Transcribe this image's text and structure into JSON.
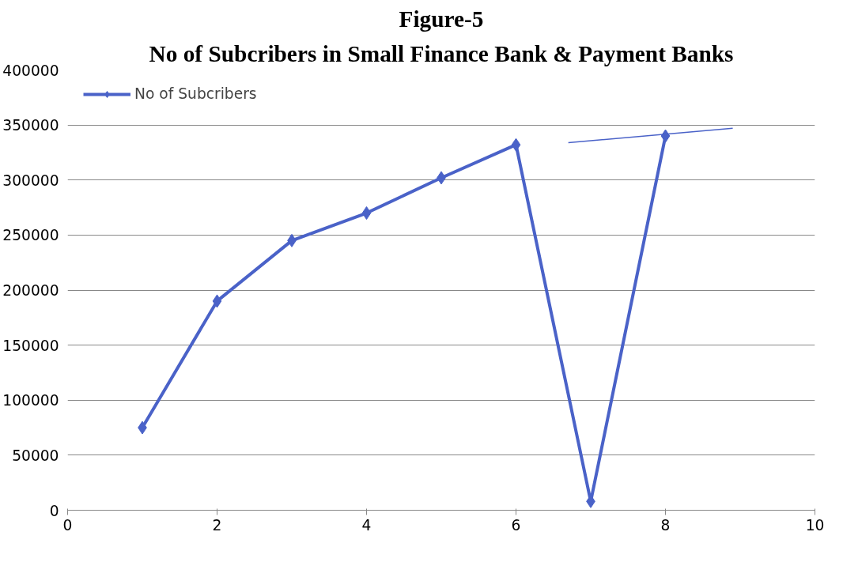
{
  "chart_data": {
    "type": "line",
    "title": "Figure-5",
    "subtitle": "No of Subcribers in Small Finance Bank & Payment Banks",
    "series": [
      {
        "name": "No of Subcribers",
        "color": "#4a62c8",
        "x": [
          1,
          2,
          3,
          4,
          5,
          6,
          7,
          8
        ],
        "values": [
          75000,
          190000,
          245000,
          270000,
          302000,
          332000,
          8000,
          340000
        ],
        "marker": "diamond"
      },
      {
        "color": "#4a62c8",
        "x": [
          6.7,
          8.9
        ],
        "values": [
          334000,
          347000
        ],
        "marker": "none"
      }
    ],
    "xlim": [
      0,
      10
    ],
    "xticks": [
      0,
      2,
      4,
      6,
      8,
      10
    ],
    "ylim": [
      0,
      400000
    ],
    "yticks": [
      0,
      50000,
      100000,
      150000,
      200000,
      250000,
      300000,
      350000,
      400000
    ],
    "grid": "y",
    "legend": "top left",
    "line_style": "solid"
  }
}
